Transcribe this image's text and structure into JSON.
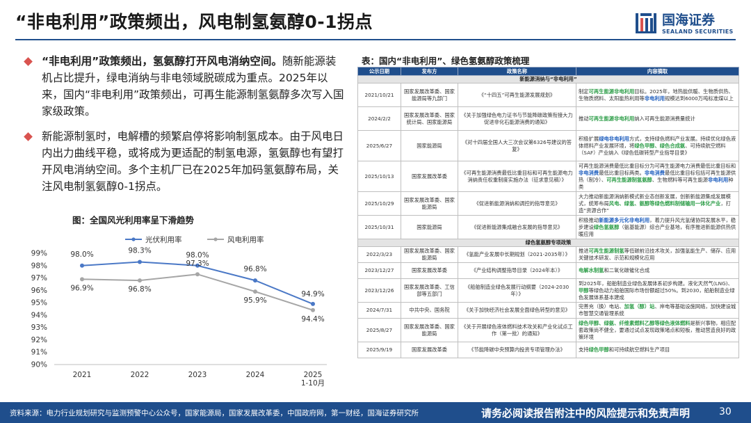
{
  "header": {
    "title": "“非电利用”政策频出，风电制氢氨醇0-1拐点",
    "logo_cn": "国海证券",
    "logo_en": "SEALAND SECURITIES"
  },
  "colors": {
    "brand": "#1f4e8c",
    "highlight_green": "#2e9e49",
    "highlight_blue": "#1f5fbf",
    "bullet": "#d9534f"
  },
  "bullets": [
    {
      "lead": "“非电利用”政策频出，氢氨醇打开风电消纳空间。",
      "text": "随新能源装机占比提升，绿电消纳与非电领域脱碳成为重点。2025年以来，国内“非电利用”政策频出，可再生能源制氢氨醇多次写入国家级政策。"
    },
    {
      "lead": "",
      "text": "新能源制氢时，电解槽的频繁启停将影响制氢成本。由于风电日内出力曲线平稳，或将成为更适配的制氢电源，氢氨醇也有望打开风电消纳空间。多个主机厂已在2025年加码氢氨醇布局，关注风电制氢氨醇0-1拐点。"
    }
  ],
  "chart_title": "图：全国风光利用率呈下滑趋势",
  "chart_data": {
    "type": "line",
    "categories": [
      "2021",
      "2022",
      "2023",
      "2024",
      "2025\n1-10月"
    ],
    "series": [
      {
        "name": "光伏利用率",
        "color": "#4a78c6",
        "values": [
          98.0,
          98.3,
          98.0,
          96.8,
          94.9
        ],
        "labels": [
          "98.0%",
          "98.3%",
          "98.0%",
          "96.8%",
          "94.9%"
        ]
      },
      {
        "name": "风电利用率",
        "color": "#a6a6a6",
        "values": [
          96.9,
          96.8,
          97.3,
          95.9,
          94.4
        ],
        "labels": [
          "96.9%",
          "96.8%",
          "97.3%",
          "95.9%",
          "94.4%"
        ]
      }
    ],
    "ylim": [
      90,
      99
    ],
    "yticks": [
      "90%",
      "91%",
      "92%",
      "93%",
      "94%",
      "95%",
      "96%",
      "97%",
      "98%",
      "99%"
    ],
    "legend": "top",
    "grid": false
  },
  "table": {
    "title": "表：国内“非电利用”、绿色氢氨醇政策梳理",
    "headers": [
      "公示日期",
      "发布方",
      "政策名称",
      "内容摘取"
    ],
    "sections": [
      {
        "title": "新能源消纳与“非电利用”",
        "rows": [
          {
            "date": "2021/10/21",
            "issuer": "国家发展改革委、国家能源局等九部门",
            "policy": "《“十四五”可再生能源发展规划》",
            "content": [
              [
                "制定"
              ],
              [
                "可再生能源非电利用",
                "hl"
              ],
              [
                "目标。2025年，地热能供暖、生物质供热、生物质燃料、太阳能热利用等"
              ],
              [
                "非电利用",
                "hb"
              ],
              [
                "规模达到6000万吨标准煤以上"
              ]
            ]
          },
          {
            "date": "2024/2/2",
            "issuer": "国家发展改革委、国家统计局、国家能源局",
            "policy": "《关于加强绿色电力证书与节能降碳政策衔接大力促进非化石能源消费的通知》",
            "content": [
              [
                "推动"
              ],
              [
                "可再生能源非电利用",
                "hl"
              ],
              [
                "纳入可再生能源消费量统计"
              ]
            ]
          },
          {
            "date": "2025/6/27",
            "issuer": "国家能源局",
            "policy": "《对十四届全国人大三次会议第6326号建议的答复》",
            "content": [
              [
                "积极扩展"
              ],
              [
                "绿电非电利用",
                "hb"
              ],
              [
                "方式，支持绿色燃料产业发展。持续优化绿色液体燃料产业发展环境，将"
              ],
              [
                "绿色甲醇、绿色合成氨",
                "hl"
              ],
              [
                "、可持续航空燃料（SAF）产业纳入《绿色低碳转型产业指导目录》"
              ]
            ]
          },
          {
            "date": "2025/10/13",
            "issuer": "国家发展改革委",
            "policy": "《可再生能源消费最低比重目标和可再生能源电力消纳责任权重制度实施办法（征求意见稿）》",
            "content": [
              [
                "可再生能源消费最低比重目标分为可再生能源电力消费最低比重目标和"
              ],
              [
                "非电消费",
                "hb"
              ],
              [
                "最低比重目标两类。"
              ],
              [
                "非电消费",
                "hb"
              ],
              [
                "最低比重目标包括可再生能源供热（制冷）、"
              ],
              [
                "可再生能源制氢氨醇",
                "hl"
              ],
              [
                "、生物燃料等可再生能源"
              ],
              [
                "非电利用",
                "hb"
              ],
              [
                "种类"
              ]
            ]
          },
          {
            "date": "2025/10/29",
            "issuer": "国家发展改革委、国家能源局",
            "policy": "《促进新能源消纳和调控的指导意见》",
            "content": [
              [
                "大力推动新能源消纳新模式新业态创新发展，创新新能源集成发展模式，统筹布局"
              ],
              [
                "风电、绿氢、氨醇等绿色燃料制储输用一体化产业",
                "hl"
              ],
              [
                "，打造“资源合作”"
              ]
            ]
          },
          {
            "date": "2025/10/31",
            "issuer": "国家能源局",
            "policy": "《促进新能源集成融合发展的指导意见》",
            "content": [
              [
                "积极推动"
              ],
              [
                "新能源多元化非电利用",
                "hb"
              ],
              [
                "，着力提升风光氢储协同发展水平，稳步建设"
              ],
              [
                "绿色氢氨醇",
                "hl"
              ],
              [
                "（氨基能源）综合产业基地，有序推进新能源供热供暖应用"
              ]
            ]
          }
        ]
      },
      {
        "title": "绿色氢氨醇专项政策",
        "rows": [
          {
            "date": "2022/3/23",
            "issuer": "国家发展改革委、国家能源局",
            "policy": "《氢能产业发展中长期规划（2021-2035年）》",
            "content": [
              [
                "推进"
              ],
              [
                "可再生能源制氢",
                "hl"
              ],
              [
                "等低碳前沿技术攻关，加强氢能生产、储存、应用关键技术研发、示范和规模化应用"
              ]
            ]
          },
          {
            "date": "2023/12/27",
            "issuer": "国家发展改革委",
            "policy": "《产业结构调整指导目录（2024年本）》",
            "content": [
              [
                "电解水制氢",
                "hl"
              ],
              [
                "和二氧化碳催化合成"
              ]
            ]
          },
          {
            "date": "2023/12/26",
            "issuer": "国家发展改革委、工信部等五部门",
            "policy": "《船舶制造业绿色发展行动纲要（2024-2030年）》",
            "content": [
              [
                "到2025年，船舶制造业绿色发展体系初步构建。液化天然气(LNG)、"
              ],
              [
                "甲醇",
                "hl"
              ],
              [
                "等绿色动力船舶国际市场份额超过50%。到2030，船舶制造业绿色发展体系基本建成"
              ]
            ]
          },
          {
            "date": "2024/7/31",
            "issuer": "中共中央、国务院",
            "policy": "《关于加快经济社会发展全面绿色转型的意见》",
            "content": [
              [
                "完善充（换）电站、"
              ],
              [
                "加氢（醇）站",
                "hl"
              ],
              [
                "、岸电等基础设施网络，加快建设城市智慧交通管理系统"
              ]
            ]
          },
          {
            "date": "2025/8/27",
            "issuer": "国家发展改革委、国家能源局",
            "policy": "《关于开展绿色液体燃料技术攻关和产业化试点工作（第一批）的通知》",
            "content": [
              [
                "绿色甲醇、绿氨、纤维素燃料乙醇等绿色液体燃料",
                "hl"
              ],
              [
                "是新兴事物，相应配套政策尚不健全，要通过试点发现政策堵点和短板，推动营造良好的政策环境"
              ]
            ]
          },
          {
            "date": "2025/9/19",
            "issuer": "国家发展改革委",
            "policy": "《节能降碳中央预算内投资专项管理办法》",
            "content": [
              [
                "支持"
              ],
              [
                "绿色甲醇",
                "hl"
              ],
              [
                "和可持续航空燃料生产项目"
              ]
            ]
          }
        ]
      }
    ]
  },
  "footer": {
    "source": "资料来源：电力行业规划研究与监测预警中心公众号，国家能源局，国家发展改革委，中国政府网，第一财经，国海证券研究所",
    "notice": "请务必阅读报告附注中的风险提示和免责声明",
    "page": "30"
  }
}
